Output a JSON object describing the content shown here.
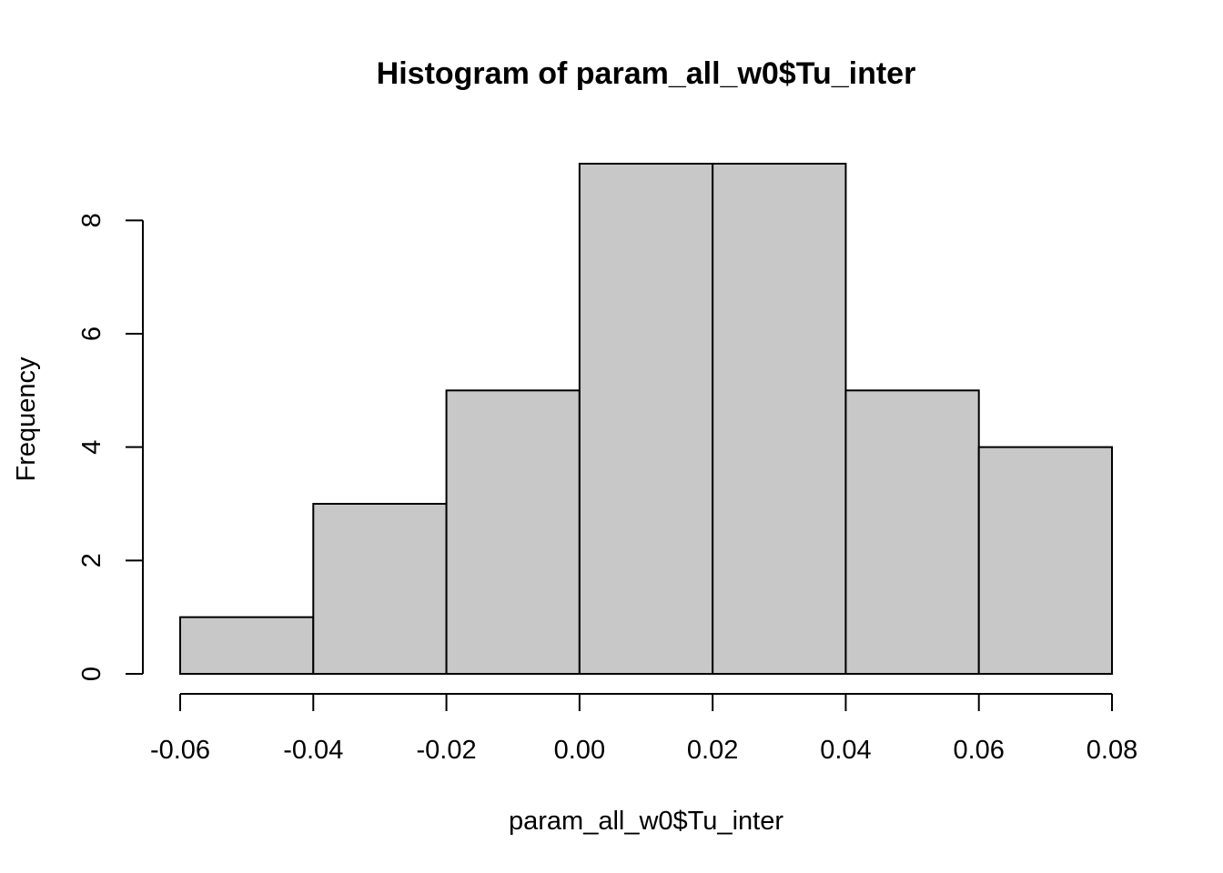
{
  "chart_data": {
    "type": "bar",
    "title": "Histogram of param_all_w0$Tu_inter",
    "xlabel": "param_all_w0$Tu_inter",
    "ylabel": "Frequency",
    "bins": [
      {
        "from": -0.06,
        "to": -0.04,
        "count": 1
      },
      {
        "from": -0.04,
        "to": -0.02,
        "count": 3
      },
      {
        "from": -0.02,
        "to": 0.0,
        "count": 5
      },
      {
        "from": 0.0,
        "to": 0.02,
        "count": 9
      },
      {
        "from": 0.02,
        "to": 0.04,
        "count": 9
      },
      {
        "from": 0.04,
        "to": 0.06,
        "count": 5
      },
      {
        "from": 0.06,
        "to": 0.08,
        "count": 4
      }
    ],
    "xlim": [
      -0.06,
      0.08
    ],
    "ylim": [
      0,
      9
    ],
    "x_ticks": [
      {
        "value": -0.06,
        "label": "-0.06"
      },
      {
        "value": -0.04,
        "label": "-0.04"
      },
      {
        "value": -0.02,
        "label": "-0.02"
      },
      {
        "value": 0.0,
        "label": "0.00"
      },
      {
        "value": 0.02,
        "label": "0.02"
      },
      {
        "value": 0.04,
        "label": "0.04"
      },
      {
        "value": 0.06,
        "label": "0.06"
      },
      {
        "value": 0.08,
        "label": "0.08"
      }
    ],
    "y_ticks": [
      {
        "value": 0,
        "label": "0"
      },
      {
        "value": 2,
        "label": "2"
      },
      {
        "value": 4,
        "label": "4"
      },
      {
        "value": 6,
        "label": "6"
      },
      {
        "value": 8,
        "label": "8"
      }
    ],
    "bar_color": "#c8c8c8",
    "grid": false
  }
}
